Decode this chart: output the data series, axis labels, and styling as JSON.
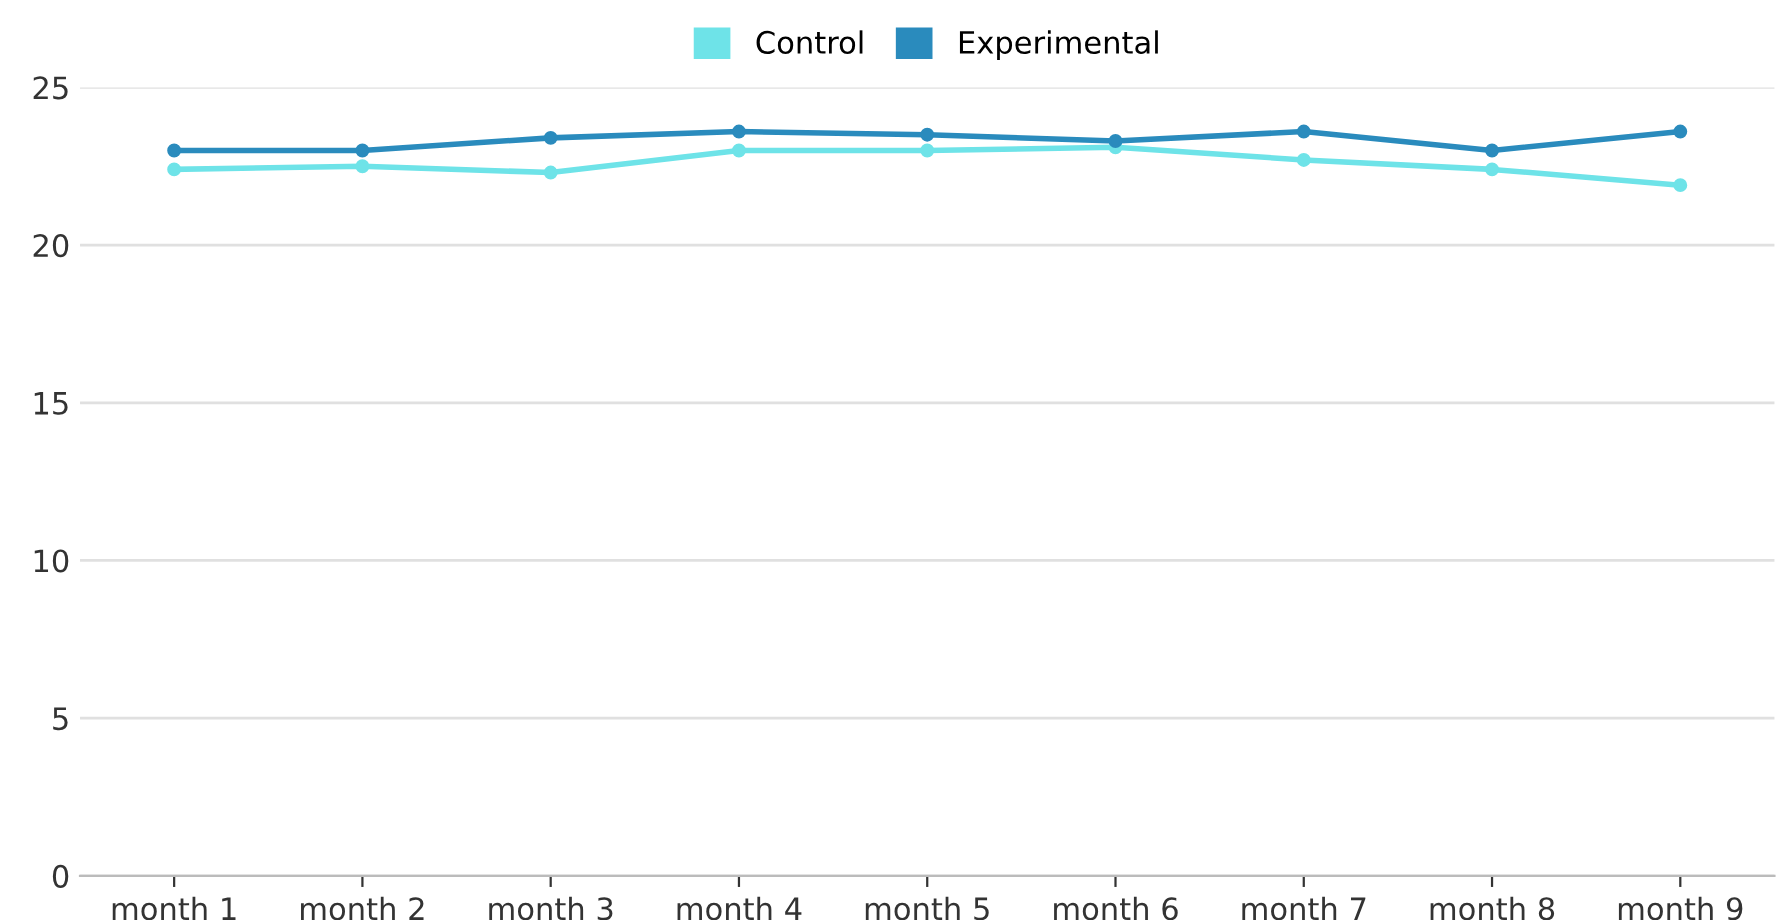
{
  "chart_data": {
    "type": "line",
    "categories": [
      "month 1",
      "month 2",
      "month 3",
      "month 4",
      "month 5",
      "month 6",
      "month 7",
      "month 8",
      "month 9"
    ],
    "series": [
      {
        "name": "Control",
        "color": "#6ee3e8",
        "values": [
          22.4,
          22.5,
          22.3,
          23.0,
          23.0,
          23.1,
          22.7,
          22.4,
          21.9
        ]
      },
      {
        "name": "Experimental",
        "color": "#2a8bbd",
        "values": [
          23.0,
          23.0,
          23.4,
          23.6,
          23.5,
          23.3,
          23.6,
          23.0,
          23.6
        ]
      }
    ],
    "ylim": [
      0,
      25
    ],
    "yticks": [
      0,
      5,
      10,
      15,
      20,
      25
    ],
    "grid": "y",
    "legend": "top",
    "marker": "circle",
    "line_style": "solid"
  }
}
